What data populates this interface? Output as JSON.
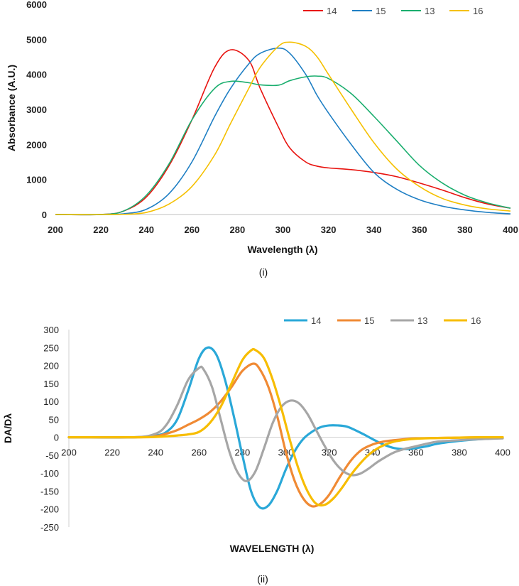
{
  "chart_data": [
    {
      "type": "line",
      "panel": "upper",
      "caption": "(i)",
      "xlabel": "Wavelength (λ)",
      "ylabel": "Absorbance (A.U.)",
      "xlim": [
        200,
        400
      ],
      "ylim": [
        0,
        6000
      ],
      "xticks": [
        200,
        220,
        240,
        260,
        280,
        300,
        320,
        340,
        360,
        380,
        400
      ],
      "yticks": [
        0,
        1000,
        2000,
        3000,
        4000,
        5000,
        6000
      ],
      "legend_position": "top-right",
      "x": [
        200,
        220,
        230,
        240,
        250,
        260,
        270,
        277,
        285,
        290,
        298,
        303,
        310,
        315,
        320,
        330,
        340,
        350,
        360,
        370,
        380,
        390,
        400
      ],
      "series": [
        {
          "name": "14",
          "color": "#e8130f",
          "values": [
            0,
            0,
            100,
            500,
            1400,
            2700,
            4200,
            4700,
            4400,
            3600,
            2500,
            1900,
            1500,
            1380,
            1330,
            1280,
            1200,
            1080,
            900,
            700,
            480,
            300,
            180
          ]
        },
        {
          "name": "15",
          "color": "#1f7fc4",
          "values": [
            0,
            0,
            20,
            150,
            600,
            1500,
            2800,
            3600,
            4300,
            4600,
            4750,
            4600,
            4000,
            3400,
            2900,
            2000,
            1200,
            720,
            420,
            240,
            130,
            60,
            20
          ]
        },
        {
          "name": "13",
          "color": "#1aae6e",
          "values": [
            0,
            0,
            100,
            550,
            1450,
            2700,
            3600,
            3800,
            3760,
            3700,
            3690,
            3820,
            3930,
            3950,
            3880,
            3450,
            2800,
            2100,
            1400,
            900,
            550,
            330,
            180
          ]
        },
        {
          "name": "16",
          "color": "#f5c000",
          "values": [
            0,
            0,
            5,
            60,
            300,
            800,
            1700,
            2600,
            3600,
            4200,
            4800,
            4920,
            4800,
            4500,
            4000,
            3000,
            2050,
            1300,
            800,
            460,
            270,
            160,
            100
          ]
        }
      ]
    },
    {
      "type": "line",
      "panel": "lower",
      "caption": "(ii)",
      "xlabel": "WAVELENGTH (λ)",
      "ylabel": "DA/Dλ",
      "xlim": [
        200,
        400
      ],
      "ylim": [
        -250,
        300
      ],
      "xticks": [
        200,
        220,
        240,
        260,
        280,
        300,
        320,
        340,
        360,
        380,
        400
      ],
      "yticks": [
        300,
        250,
        200,
        150,
        100,
        50,
        0,
        -50,
        -100,
        -150,
        -200,
        -250
      ],
      "legend_position": "top-right",
      "series": [
        {
          "name": "14",
          "color": "#2aa8d8",
          "x": [
            200,
            230,
            240,
            245,
            250,
            255,
            260,
            264,
            268,
            272,
            276,
            280,
            284,
            288,
            292,
            296,
            300,
            304,
            308,
            312,
            316,
            320,
            324,
            328,
            332,
            336,
            340,
            345,
            350,
            355,
            360,
            365,
            370,
            380,
            390,
            400
          ],
          "values": [
            0,
            0,
            5,
            15,
            50,
            130,
            220,
            250,
            230,
            160,
            60,
            -50,
            -150,
            -195,
            -190,
            -150,
            -90,
            -40,
            -5,
            15,
            28,
            33,
            33,
            30,
            20,
            8,
            -5,
            -20,
            -30,
            -33,
            -30,
            -25,
            -18,
            -10,
            -5,
            -2
          ]
        },
        {
          "name": "15",
          "color": "#f08a34",
          "x": [
            200,
            230,
            240,
            245,
            250,
            255,
            260,
            265,
            270,
            275,
            280,
            285,
            288,
            292,
            296,
            300,
            304,
            308,
            312,
            316,
            320,
            325,
            330,
            335,
            340,
            345,
            350,
            355,
            360,
            370,
            380,
            390,
            400
          ],
          "values": [
            0,
            0,
            3,
            10,
            20,
            35,
            50,
            70,
            100,
            140,
            185,
            205,
            190,
            140,
            60,
            -40,
            -120,
            -170,
            -192,
            -185,
            -160,
            -110,
            -65,
            -35,
            -20,
            -12,
            -8,
            -5,
            -3,
            -2,
            -1,
            0,
            0
          ]
        },
        {
          "name": "13",
          "color": "#a6a6a6",
          "x": [
            200,
            230,
            240,
            245,
            250,
            255,
            260,
            262,
            266,
            270,
            274,
            278,
            282,
            286,
            290,
            294,
            298,
            302,
            306,
            310,
            314,
            318,
            322,
            326,
            330,
            334,
            338,
            342,
            346,
            350,
            355,
            360,
            365,
            370,
            380,
            390,
            400
          ],
          "values": [
            0,
            0,
            10,
            35,
            90,
            160,
            193,
            190,
            140,
            50,
            -40,
            -100,
            -122,
            -95,
            -30,
            40,
            85,
            102,
            95,
            65,
            20,
            -25,
            -65,
            -92,
            -105,
            -102,
            -88,
            -70,
            -55,
            -42,
            -32,
            -25,
            -18,
            -12,
            -8,
            -5,
            -3
          ]
        },
        {
          "name": "16",
          "color": "#f7bd00",
          "x": [
            200,
            230,
            240,
            250,
            255,
            260,
            265,
            270,
            275,
            280,
            284,
            286,
            290,
            294,
            298,
            302,
            306,
            310,
            314,
            318,
            322,
            326,
            330,
            334,
            338,
            342,
            346,
            350,
            355,
            360,
            370,
            380,
            390,
            400
          ],
          "values": [
            0,
            0,
            1,
            5,
            8,
            15,
            40,
            85,
            150,
            215,
            242,
            243,
            220,
            160,
            80,
            -10,
            -90,
            -150,
            -185,
            -188,
            -170,
            -140,
            -105,
            -75,
            -50,
            -32,
            -20,
            -12,
            -7,
            -4,
            -2,
            -1,
            0,
            0
          ]
        }
      ]
    }
  ]
}
